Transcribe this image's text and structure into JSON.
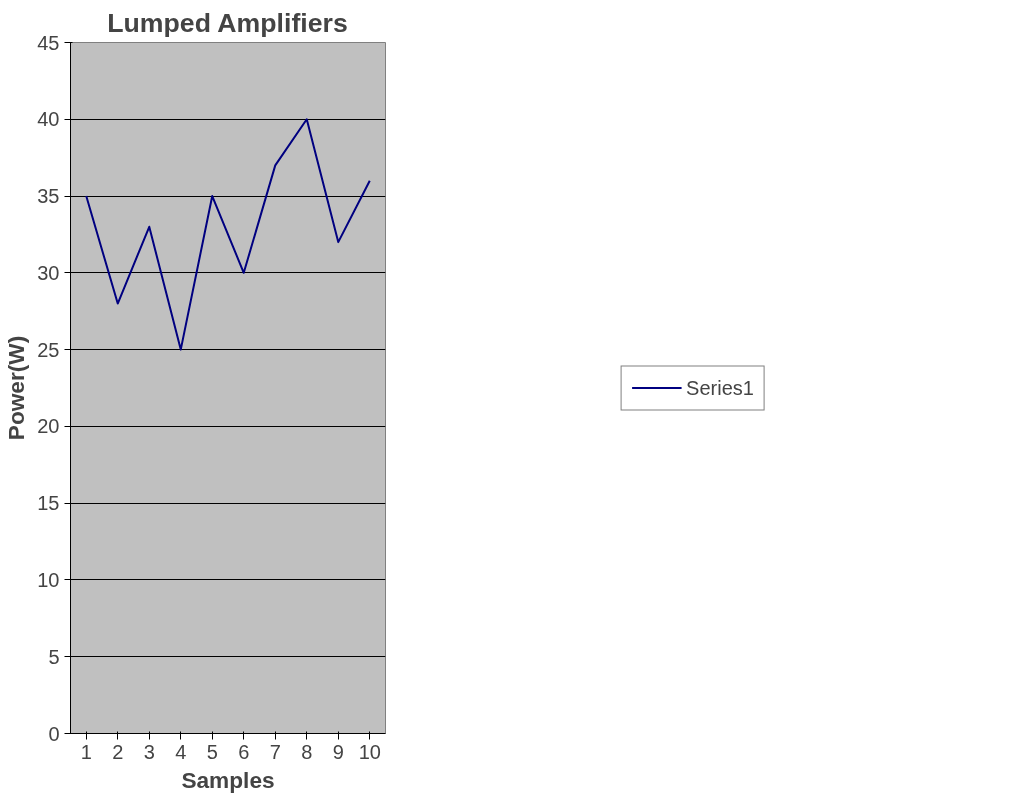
{
  "chart_data": {
    "type": "line",
    "title": "Lumped Amplifiers",
    "xlabel": "Samples",
    "ylabel": "Power(W)",
    "categories": [
      "1",
      "2",
      "3",
      "4",
      "5",
      "6",
      "7",
      "8",
      "9",
      "10"
    ],
    "series": [
      {
        "name": "Series1",
        "color": "#000080",
        "values": [
          35,
          28,
          33,
          25,
          35,
          30,
          37,
          40,
          32,
          36
        ]
      }
    ],
    "ylim": [
      0,
      45
    ],
    "yticks": [
      0,
      5,
      10,
      15,
      20,
      25,
      30,
      35,
      40,
      45
    ],
    "grid": "y",
    "legend": "right",
    "marker": "none",
    "line_style": "solid"
  }
}
